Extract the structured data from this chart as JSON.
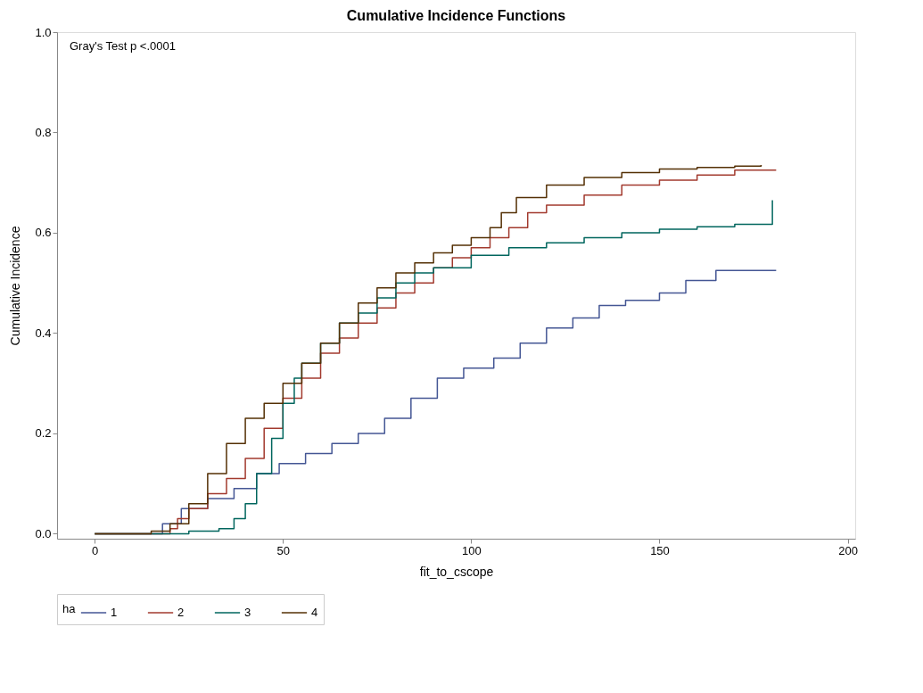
{
  "chart_data": {
    "type": "step",
    "title": "Cumulative Incidence Functions",
    "xlabel": "fit_to_cscope",
    "ylabel": "Cumulative Incidence",
    "legend_title": "ha",
    "legend": "bottom",
    "grid": false,
    "line_style": "solid",
    "marker": "none",
    "xlim": [
      -10,
      202
    ],
    "ylim": [
      -0.01,
      1.0
    ],
    "xticks": [
      0,
      50,
      100,
      150,
      200
    ],
    "yticks": [
      {
        "value": 0,
        "label": "0.0"
      },
      {
        "value": 0.2,
        "label": "0.2"
      },
      {
        "value": 0.4,
        "label": "0.4"
      },
      {
        "value": 0.6,
        "label": "0.6"
      },
      {
        "value": 0.8,
        "label": "0.8"
      },
      {
        "value": 1.0,
        "label": "1.0"
      }
    ],
    "annotations": [
      "Gray's Test p <.0001"
    ],
    "series": [
      {
        "name": "1",
        "color": "#445694",
        "x": [
          0,
          15,
          18,
          23,
          30,
          37,
          43,
          49,
          56,
          63,
          70,
          77,
          84,
          91,
          98,
          106,
          113,
          120,
          127,
          134,
          141,
          150,
          157,
          165,
          181
        ],
        "values": [
          0,
          0,
          0.02,
          0.05,
          0.07,
          0.09,
          0.12,
          0.14,
          0.16,
          0.18,
          0.2,
          0.23,
          0.27,
          0.31,
          0.33,
          0.35,
          0.38,
          0.41,
          0.43,
          0.455,
          0.465,
          0.48,
          0.505,
          0.525,
          0.525
        ]
      },
      {
        "name": "2",
        "color": "#a23a2e",
        "x": [
          0,
          17,
          20,
          22,
          25,
          30,
          35,
          40,
          45,
          50,
          55,
          60,
          65,
          70,
          75,
          80,
          85,
          90,
          95,
          100,
          105,
          110,
          115,
          120,
          130,
          140,
          150,
          160,
          170,
          181
        ],
        "values": [
          0,
          0,
          0.01,
          0.03,
          0.05,
          0.08,
          0.11,
          0.15,
          0.21,
          0.27,
          0.31,
          0.36,
          0.39,
          0.42,
          0.45,
          0.48,
          0.5,
          0.53,
          0.55,
          0.57,
          0.59,
          0.61,
          0.64,
          0.655,
          0.675,
          0.695,
          0.705,
          0.715,
          0.725,
          0.725
        ]
      },
      {
        "name": "3",
        "color": "#01665e",
        "x": [
          0,
          20,
          25,
          33,
          37,
          40,
          43,
          47,
          50,
          53,
          55,
          60,
          65,
          70,
          75,
          80,
          85,
          90,
          100,
          110,
          120,
          130,
          140,
          150,
          160,
          170,
          180,
          180
        ],
        "values": [
          0,
          0,
          0.005,
          0.01,
          0.03,
          0.06,
          0.12,
          0.19,
          0.26,
          0.31,
          0.34,
          0.38,
          0.42,
          0.44,
          0.47,
          0.5,
          0.52,
          0.53,
          0.555,
          0.57,
          0.58,
          0.59,
          0.6,
          0.607,
          0.612,
          0.617,
          0.617,
          0.665
        ]
      },
      {
        "name": "4",
        "color": "#543005",
        "x": [
          0,
          10,
          15,
          20,
          25,
          30,
          35,
          40,
          45,
          50,
          55,
          60,
          65,
          70,
          75,
          80,
          85,
          90,
          95,
          100,
          105,
          108,
          112,
          120,
          130,
          140,
          150,
          160,
          170,
          177
        ],
        "values": [
          0,
          0,
          0.005,
          0.02,
          0.06,
          0.12,
          0.18,
          0.23,
          0.26,
          0.3,
          0.34,
          0.38,
          0.42,
          0.46,
          0.49,
          0.52,
          0.54,
          0.56,
          0.575,
          0.59,
          0.61,
          0.64,
          0.67,
          0.695,
          0.71,
          0.72,
          0.727,
          0.73,
          0.733,
          0.735
        ]
      }
    ]
  }
}
